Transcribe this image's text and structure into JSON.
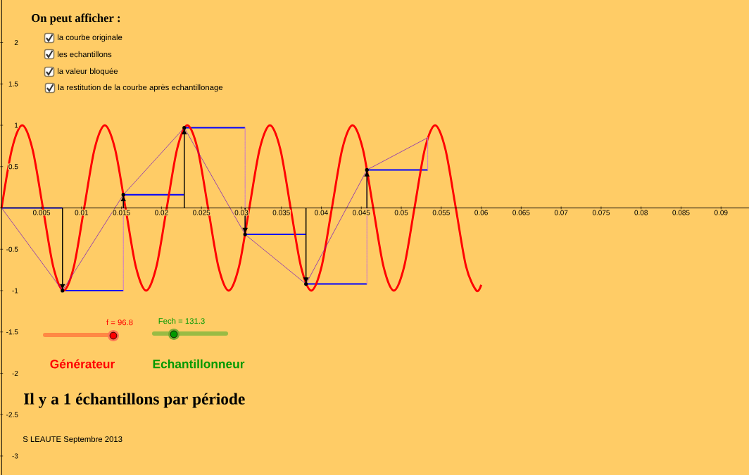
{
  "chart_data": {
    "type": "line",
    "xlim": [
      -0.0002,
      0.0935
    ],
    "ylim": [
      -3.23,
      2.515
    ],
    "xticks": [
      0.005,
      0.01,
      0.015,
      0.02,
      0.025,
      0.03,
      0.035,
      0.04,
      0.045,
      0.05,
      0.055,
      0.06,
      0.065,
      0.07,
      0.075,
      0.08,
      0.085,
      0.09
    ],
    "yticks": [
      -3,
      -2.5,
      -2,
      -1.5,
      -1,
      -0.5,
      0.5,
      1,
      1.5,
      2
    ],
    "grid": false,
    "series": [
      {
        "color": "#ff0000",
        "x": [
          0,
          0.00129,
          0.00258,
          0.00387,
          0.00517,
          0.00646,
          0.00775,
          0.00904,
          0.01033,
          0.01162,
          0.01291,
          0.0142,
          0.0155,
          0.01679,
          0.01808,
          0.01937,
          0.02066,
          0.02195,
          0.02324,
          0.02453,
          0.02583,
          0.02712,
          0.02841,
          0.0297,
          0.03099,
          0.03228,
          0.03357,
          0.03487,
          0.03616,
          0.03745,
          0.03874,
          0.04003,
          0.04132,
          0.04261,
          0.0439,
          0.0452,
          0.04649,
          0.04778,
          0.04907,
          0.05036,
          0.05165,
          0.05294,
          0.05423,
          0.05552,
          0.05682,
          0.05811,
          0.0594,
          0.06
        ],
        "values": [
          0,
          0.71,
          1,
          0.71,
          0,
          -0.71,
          -1,
          -0.71,
          0,
          0.71,
          1,
          0.71,
          0,
          -0.71,
          -1,
          -0.71,
          0,
          0.71,
          1,
          0.71,
          0,
          -0.71,
          -1,
          -0.71,
          0,
          0.71,
          1,
          0.71,
          0,
          -0.71,
          -1,
          -0.71,
          0,
          0.71,
          1,
          0.71,
          0,
          -0.71,
          -1,
          -0.71,
          0,
          0.71,
          1,
          0.71,
          0,
          -0.71,
          -1,
          -0.93
        ]
      },
      {
        "type": "lollipop",
        "color": "#000000",
        "x": [
          0.00762,
          0.01523,
          0.02285,
          0.03046,
          0.03808,
          0.0457
        ],
        "values": [
          -1,
          0.16,
          0.97,
          -0.32,
          -0.92,
          0.46
        ]
      },
      {
        "type": "step",
        "color": "#0000ff",
        "x": [
          0,
          0.00762,
          0.01523,
          0.02285,
          0.03046,
          0.03808,
          0.0457,
          0.05331
        ],
        "values": [
          0,
          -1,
          0.16,
          0.97,
          -0.32,
          -0.92,
          0.46,
          0.46
        ]
      },
      {
        "color": "#6600cc",
        "x": [
          0,
          0.00762,
          0.01523,
          0.02285,
          0.03046,
          0.03808,
          0.0457,
          0.05331
        ],
        "values": [
          0,
          -1,
          0.16,
          0.97,
          -0.32,
          -0.92,
          0.46,
          0.85
        ]
      },
      {
        "color": "#cc77cc",
        "line_style": "dotted",
        "x": [
          0.01523,
          0.01523
        ],
        "values": [
          -1,
          0.16
        ]
      },
      {
        "color": "#cc77cc",
        "line_style": "dotted",
        "x": [
          0.03046,
          0.03046
        ],
        "values": [
          0.97,
          -0.32
        ]
      },
      {
        "color": "#cc77cc",
        "line_style": "dotted",
        "x": [
          0.0457,
          0.0457
        ],
        "values": [
          -0.92,
          0.46
        ]
      },
      {
        "color": "#cc77cc",
        "line_style": "dotted",
        "x": [
          0.05331,
          0.05331
        ],
        "values": [
          0.46,
          0.85
        ]
      }
    ],
    "annotations": [
      "On peut afficher :",
      "la courbe originale",
      "les echantillons",
      "la valeur bloquée",
      "la restitution de la courbe après echantillonage",
      "f = 96.8",
      "Fech = 131.3",
      "Générateur",
      "Echantillonneur",
      "Il y a 1 échantillons par période",
      "S LEAUTE Septembre 2013"
    ]
  }
}
